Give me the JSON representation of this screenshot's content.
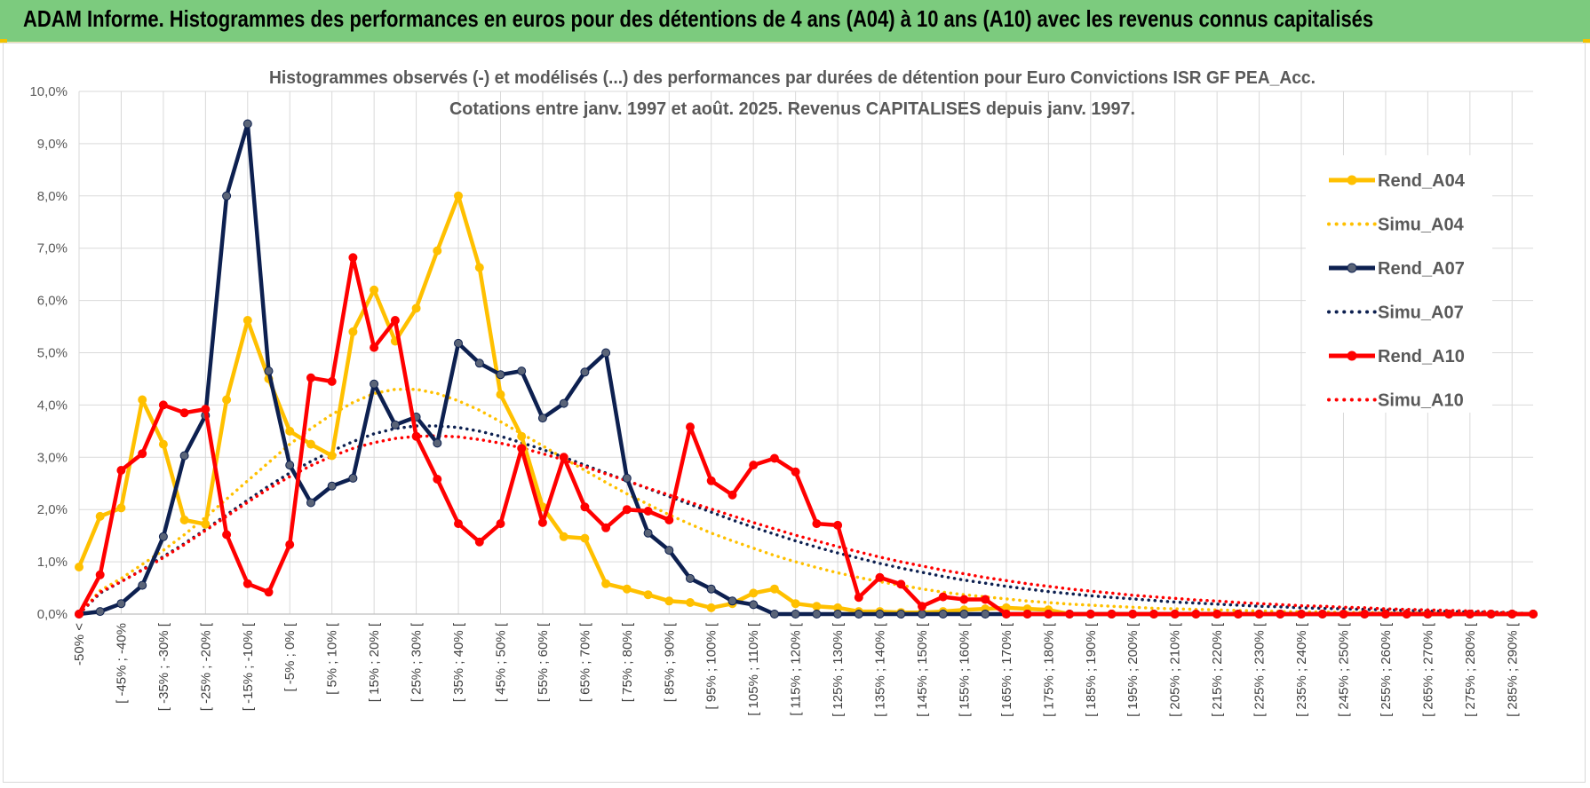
{
  "banner": {
    "title": "ADAM Informe. Histogrammes des performances en euros pour des détentions de 4 ans (A04) à 10 ans (A10) avec les revenus connus capitalisés",
    "color": "#7ccb7e"
  },
  "chart_data": {
    "type": "line",
    "title": "Histogrammes observés (-) et modélisés (...) des performances par durées de détention pour Euro Convictions ISR GF PEA_Acc.",
    "subtitle": "Cotations entre janv. 1997 et août. 2025. Revenus CAPITALISES depuis janv. 1997.",
    "xlabel": "",
    "ylabel": "",
    "ylim": [
      0,
      10
    ],
    "y_ticks": [
      "0,0%",
      "1,0%",
      "2,0%",
      "3,0%",
      "4,0%",
      "5,0%",
      "6,0%",
      "7,0%",
      "8,0%",
      "9,0%",
      "10,0%"
    ],
    "grid": true,
    "legend_position": "right",
    "x_labels": [
      "-50% <",
      "[ -45% ; -40%",
      "[ -35% ; -30% [",
      "[ -25% ; -20% [",
      "[ -15% ; -10% [",
      "[ -5% ; 0% [",
      "[ 5% ; 10% [",
      "[ 15% ; 20% [",
      "[ 25% ; 30% [",
      "[ 35% ; 40% [",
      "[ 45% ; 50% [",
      "[ 55% ; 60% [",
      "[ 65% ; 70% [",
      "[ 75% ; 80% [",
      "[ 85% ; 90% [",
      "[ 95% ; 100% [",
      "[ 105% ; 110% [",
      "[ 115% ; 120% [",
      "[ 125% ; 130% [",
      "[ 135% ; 140% [",
      "[ 145% ; 150% [",
      "[ 155% ; 160% [",
      "[ 165% ; 170% [",
      "[ 175% ; 180% [",
      "[ 185% ; 190% [",
      "[ 195% ; 200% [",
      "[ 205% ; 210% [",
      "[ 215% ; 220% [",
      "[ 225% ; 230% [",
      "[ 235% ; 240% [",
      "[ 245% ; 250% [",
      "[ 255% ; 260% [",
      "[ 265% ; 270% [",
      "[ 275% ; 280% [",
      "[ 285% ; 290% ["
    ],
    "series": [
      {
        "name": "Rend_A04",
        "color": "#ffc000",
        "style": "solid",
        "values": [
          0.9,
          1.87,
          2.03,
          4.1,
          3.25,
          1.8,
          1.72,
          4.1,
          5.62,
          4.5,
          3.5,
          3.25,
          3.03,
          5.4,
          6.2,
          5.22,
          5.85,
          6.95,
          8.0,
          6.63,
          4.2,
          3.4,
          2.05,
          1.48,
          1.45,
          0.58,
          0.48,
          0.37,
          0.25,
          0.22,
          0.12,
          0.2,
          0.4,
          0.48,
          0.2,
          0.15,
          0.12,
          0.05,
          0.05,
          0.03,
          0.03,
          0.05,
          0.08,
          0.1,
          0.12,
          0.1,
          0.08,
          0.0,
          0.0,
          0.0,
          0.0,
          0.0,
          0.0,
          0.0,
          0.0,
          0.0,
          0.0,
          0.0,
          0.0,
          0.0,
          0.0,
          0.0,
          0.0,
          0.0,
          0.0,
          0.0,
          0.0,
          0.0,
          0.0,
          0.0
        ]
      },
      {
        "name": "Simu_A04",
        "color": "#ffc000",
        "style": "dotted",
        "values": [
          0.0,
          0.45,
          0.68,
          0.95,
          1.22,
          1.52,
          1.85,
          2.2,
          2.55,
          2.9,
          3.25,
          3.55,
          3.82,
          4.05,
          4.22,
          4.3,
          4.3,
          4.22,
          4.08,
          3.9,
          3.68,
          3.45,
          3.22,
          2.98,
          2.75,
          2.52,
          2.3,
          2.1,
          1.9,
          1.72,
          1.55,
          1.4,
          1.26,
          1.12,
          1.0,
          0.89,
          0.79,
          0.7,
          0.62,
          0.55,
          0.48,
          0.42,
          0.37,
          0.33,
          0.29,
          0.25,
          0.22,
          0.19,
          0.17,
          0.15,
          0.13,
          0.11,
          0.1,
          0.09,
          0.08,
          0.07,
          0.06,
          0.05,
          0.04,
          0.04,
          0.03,
          0.03,
          0.02,
          0.02,
          0.02,
          0.01,
          0.01,
          0.01,
          0.01,
          0.0
        ]
      },
      {
        "name": "Rend_A07",
        "color": "#0d2050",
        "style": "solid",
        "values": [
          0.0,
          0.05,
          0.2,
          0.55,
          1.48,
          3.03,
          3.8,
          8.0,
          9.38,
          4.65,
          2.85,
          2.13,
          2.45,
          2.6,
          4.4,
          3.62,
          3.77,
          3.27,
          5.18,
          4.8,
          4.58,
          4.65,
          3.75,
          4.03,
          4.63,
          5.0,
          2.6,
          1.55,
          1.22,
          0.68,
          0.48,
          0.25,
          0.18,
          0.0,
          0.0,
          0.0,
          0.0,
          0.0,
          0.0,
          0.0,
          0.0,
          0.0,
          0.0,
          0.0,
          0.0,
          0.0,
          0.0,
          0.0,
          0.0,
          0.0,
          0.0,
          0.0,
          0.0,
          0.0,
          0.0,
          0.0,
          0.0,
          0.0,
          0.0,
          0.0,
          0.0,
          0.0,
          0.0,
          0.0,
          0.0,
          0.0,
          0.0,
          0.0,
          0.0,
          0.0
        ]
      },
      {
        "name": "Simu_A07",
        "color": "#0d2050",
        "style": "dotted",
        "values": [
          0.0,
          0.4,
          0.62,
          0.85,
          1.1,
          1.35,
          1.62,
          1.9,
          2.18,
          2.45,
          2.7,
          2.92,
          3.12,
          3.3,
          3.45,
          3.55,
          3.6,
          3.6,
          3.57,
          3.5,
          3.4,
          3.28,
          3.15,
          3.0,
          2.85,
          2.7,
          2.55,
          2.4,
          2.25,
          2.1,
          1.95,
          1.8,
          1.66,
          1.53,
          1.4,
          1.28,
          1.17,
          1.07,
          0.97,
          0.88,
          0.8,
          0.72,
          0.65,
          0.59,
          0.53,
          0.48,
          0.43,
          0.39,
          0.35,
          0.32,
          0.29,
          0.26,
          0.23,
          0.21,
          0.19,
          0.17,
          0.15,
          0.14,
          0.12,
          0.11,
          0.1,
          0.09,
          0.08,
          0.07,
          0.06,
          0.05,
          0.04,
          0.03,
          0.02,
          0.0
        ]
      },
      {
        "name": "Rend_A10",
        "color": "#ff0000",
        "style": "solid",
        "values": [
          0.0,
          0.75,
          2.75,
          3.07,
          4.0,
          3.85,
          3.92,
          1.52,
          0.58,
          0.42,
          1.33,
          4.52,
          4.45,
          6.82,
          5.1,
          5.62,
          3.4,
          2.58,
          1.73,
          1.38,
          1.73,
          3.17,
          1.75,
          3.0,
          2.05,
          1.65,
          2.0,
          1.97,
          1.8,
          3.58,
          2.55,
          2.28,
          2.85,
          2.98,
          2.72,
          1.73,
          1.7,
          0.32,
          0.7,
          0.57,
          0.15,
          0.33,
          0.28,
          0.28,
          0.0,
          0.0,
          0.0,
          0.0,
          0.0,
          0.0,
          0.0,
          0.0,
          0.0,
          0.0,
          0.0,
          0.0,
          0.0,
          0.0,
          0.0,
          0.0,
          0.0,
          0.0,
          0.0,
          0.0,
          0.0,
          0.0,
          0.0,
          0.0,
          0.0,
          0.0
        ]
      },
      {
        "name": "Simu_A10",
        "color": "#ff0000",
        "style": "dotted",
        "values": [
          0.0,
          0.42,
          0.62,
          0.84,
          1.08,
          1.33,
          1.6,
          1.87,
          2.14,
          2.4,
          2.63,
          2.84,
          3.02,
          3.17,
          3.28,
          3.36,
          3.4,
          3.41,
          3.39,
          3.34,
          3.27,
          3.18,
          3.07,
          2.95,
          2.82,
          2.68,
          2.55,
          2.41,
          2.28,
          2.14,
          2.01,
          1.88,
          1.75,
          1.63,
          1.51,
          1.4,
          1.29,
          1.19,
          1.09,
          1.0,
          0.92,
          0.84,
          0.77,
          0.7,
          0.64,
          0.58,
          0.53,
          0.48,
          0.44,
          0.4,
          0.36,
          0.33,
          0.3,
          0.27,
          0.25,
          0.22,
          0.2,
          0.18,
          0.16,
          0.15,
          0.13,
          0.12,
          0.1,
          0.09,
          0.08,
          0.07,
          0.06,
          0.04,
          0.03,
          0.0
        ]
      }
    ]
  }
}
